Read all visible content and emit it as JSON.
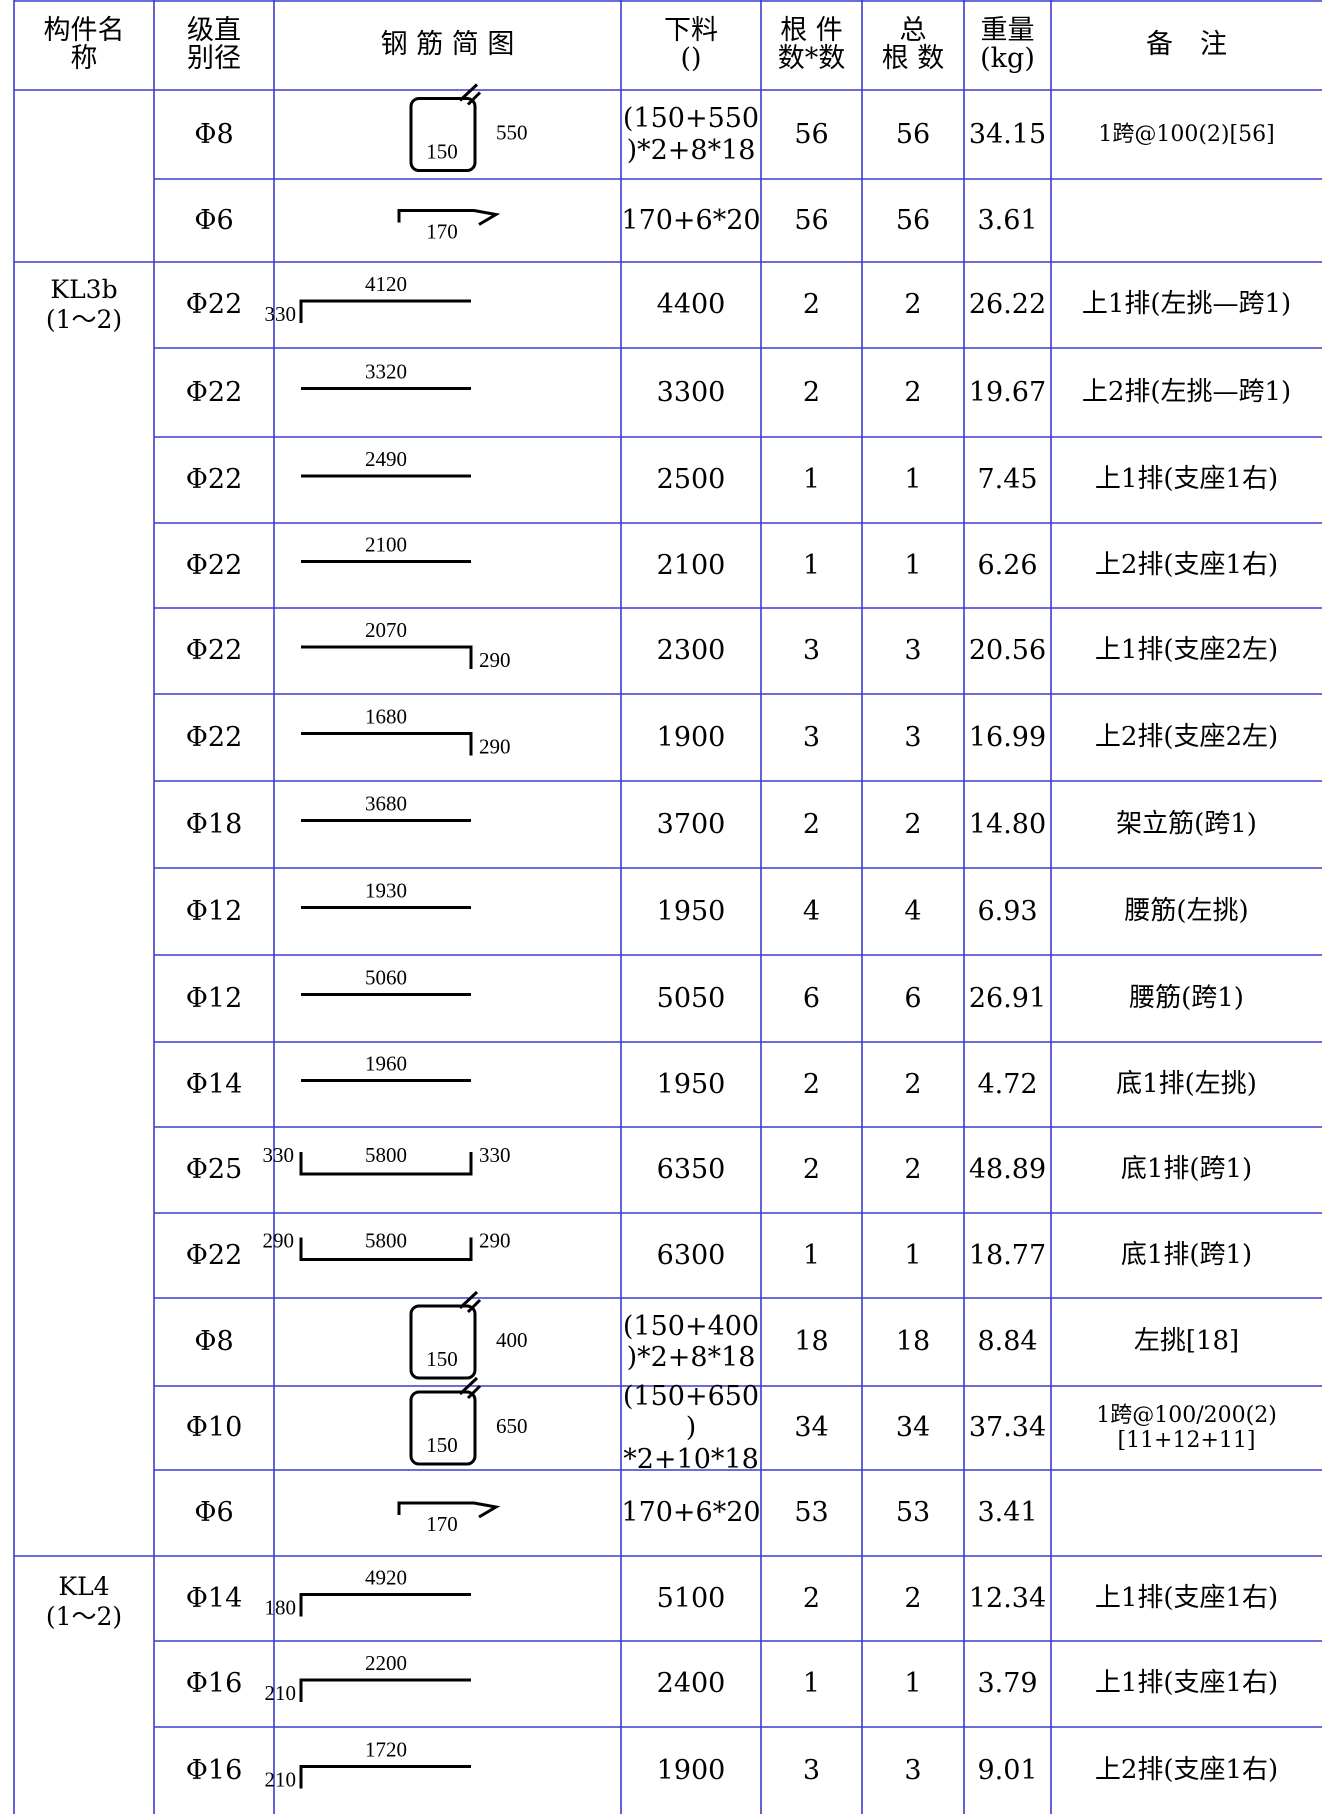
{
  "headers": {
    "member": [
      "构件名",
      "称"
    ],
    "grade_dia": [
      "级直",
      "别径"
    ],
    "sketch": "钢 筋 简 图",
    "cut_length": [
      "下料",
      "()"
    ],
    "count": [
      "根 件",
      "数*数"
    ],
    "total": [
      "总",
      "根 数"
    ],
    "weight": [
      "重量",
      "(kg)"
    ],
    "remark": "备　注"
  },
  "groups": [
    {
      "name": "",
      "span": ""
    },
    {
      "name": "KL3b",
      "span": "(1～2)"
    },
    {
      "name": "KL4",
      "span": "(1～2)"
    }
  ],
  "rows": [
    {
      "dia": "Φ8",
      "shape": "stirrup",
      "dims": [
        "150",
        "550"
      ],
      "cut": [
        "(150+550",
        ")*2+8*18"
      ],
      "count": "56",
      "total": "56",
      "weight": "34.15",
      "remark": [
        "1跨@100(2)[56]"
      ],
      "remark_size": "small"
    },
    {
      "dia": "Φ6",
      "shape": "tie",
      "dims": [
        "170"
      ],
      "cut": [
        "170+6*20"
      ],
      "count": "56",
      "total": "56",
      "weight": "3.61",
      "remark": [
        ""
      ]
    },
    {
      "dia": "Φ22",
      "shape": "hook-left",
      "dims": [
        "330",
        "4120"
      ],
      "cut": [
        "4400"
      ],
      "count": "2",
      "total": "2",
      "weight": "26.22",
      "remark": [
        "上1排(左挑—跨1)"
      ]
    },
    {
      "dia": "Φ22",
      "shape": "straight",
      "dims": [
        "3320"
      ],
      "cut": [
        "3300"
      ],
      "count": "2",
      "total": "2",
      "weight": "19.67",
      "remark": [
        "上2排(左挑—跨1)"
      ]
    },
    {
      "dia": "Φ22",
      "shape": "straight",
      "dims": [
        "2490"
      ],
      "cut": [
        "2500"
      ],
      "count": "1",
      "total": "1",
      "weight": "7.45",
      "remark": [
        "上1排(支座1右)"
      ]
    },
    {
      "dia": "Φ22",
      "shape": "straight",
      "dims": [
        "2100"
      ],
      "cut": [
        "2100"
      ],
      "count": "1",
      "total": "1",
      "weight": "6.26",
      "remark": [
        "上2排(支座1右)"
      ]
    },
    {
      "dia": "Φ22",
      "shape": "hook-right",
      "dims": [
        "2070",
        "290"
      ],
      "cut": [
        "2300"
      ],
      "count": "3",
      "total": "3",
      "weight": "20.56",
      "remark": [
        "上1排(支座2左)"
      ]
    },
    {
      "dia": "Φ22",
      "shape": "hook-right",
      "dims": [
        "1680",
        "290"
      ],
      "cut": [
        "1900"
      ],
      "count": "3",
      "total": "3",
      "weight": "16.99",
      "remark": [
        "上2排(支座2左)"
      ]
    },
    {
      "dia": "Φ18",
      "shape": "straight",
      "dims": [
        "3680"
      ],
      "cut": [
        "3700"
      ],
      "count": "2",
      "total": "2",
      "weight": "14.80",
      "remark": [
        "架立筋(跨1)"
      ]
    },
    {
      "dia": "Φ12",
      "shape": "straight",
      "dims": [
        "1930"
      ],
      "cut": [
        "1950"
      ],
      "count": "4",
      "total": "4",
      "weight": "6.93",
      "remark": [
        "腰筋(左挑)"
      ]
    },
    {
      "dia": "Φ12",
      "shape": "straight",
      "dims": [
        "5060"
      ],
      "cut": [
        "5050"
      ],
      "count": "6",
      "total": "6",
      "weight": "26.91",
      "remark": [
        "腰筋(跨1)"
      ]
    },
    {
      "dia": "Φ14",
      "shape": "straight",
      "dims": [
        "1960"
      ],
      "cut": [
        "1950"
      ],
      "count": "2",
      "total": "2",
      "weight": "4.72",
      "remark": [
        "底1排(左挑)"
      ]
    },
    {
      "dia": "Φ25",
      "shape": "u-bar",
      "dims": [
        "330",
        "5800",
        "330"
      ],
      "cut": [
        "6350"
      ],
      "count": "2",
      "total": "2",
      "weight": "48.89",
      "remark": [
        "底1排(跨1)"
      ]
    },
    {
      "dia": "Φ22",
      "shape": "u-bar",
      "dims": [
        "290",
        "5800",
        "290"
      ],
      "cut": [
        "6300"
      ],
      "count": "1",
      "total": "1",
      "weight": "18.77",
      "remark": [
        "底1排(跨1)"
      ]
    },
    {
      "dia": "Φ8",
      "shape": "stirrup",
      "dims": [
        "150",
        "400"
      ],
      "cut": [
        "(150+400",
        ")*2+8*18"
      ],
      "count": "18",
      "total": "18",
      "weight": "8.84",
      "remark": [
        "左挑[18]"
      ]
    },
    {
      "dia": "Φ10",
      "shape": "stirrup",
      "dims": [
        "150",
        "650"
      ],
      "cut": [
        "(150+650",
        ")",
        "*2+10*18"
      ],
      "count": "34",
      "total": "34",
      "weight": "37.34",
      "remark": [
        "1跨@100/200(2)",
        "[11+12+11]"
      ],
      "remark_size": "small"
    },
    {
      "dia": "Φ6",
      "shape": "tie",
      "dims": [
        "170"
      ],
      "cut": [
        "170+6*20"
      ],
      "count": "53",
      "total": "53",
      "weight": "3.41",
      "remark": [
        ""
      ]
    },
    {
      "dia": "Φ14",
      "shape": "hook-left",
      "dims": [
        "180",
        "4920"
      ],
      "cut": [
        "5100"
      ],
      "count": "2",
      "total": "2",
      "weight": "12.34",
      "remark": [
        "上1排(支座1右)"
      ]
    },
    {
      "dia": "Φ16",
      "shape": "hook-left",
      "dims": [
        "210",
        "2200"
      ],
      "cut": [
        "2400"
      ],
      "count": "1",
      "total": "1",
      "weight": "3.79",
      "remark": [
        "上1排(支座1右)"
      ]
    },
    {
      "dia": "Φ16",
      "shape": "hook-left",
      "dims": [
        "210",
        "1720"
      ],
      "cut": [
        "1900"
      ],
      "count": "3",
      "total": "3",
      "weight": "9.01",
      "remark": [
        "上2排(支座1右)"
      ]
    }
  ]
}
